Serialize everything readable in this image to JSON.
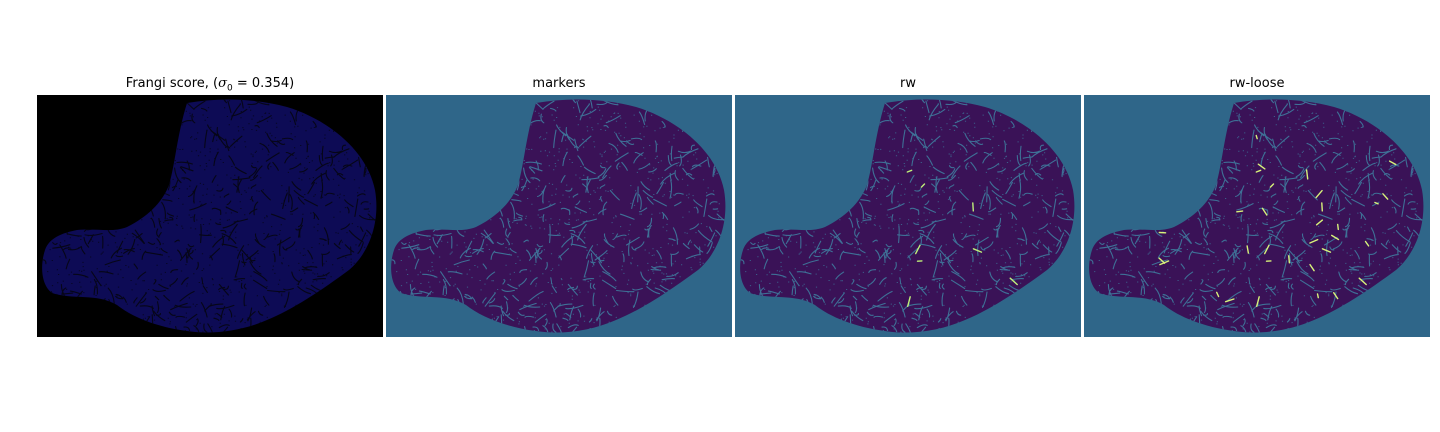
{
  "panels": [
    {
      "title_prefix": "Frangi score, (",
      "title_math": "σ",
      "title_sub": "0",
      "title_suffix": " = 0.354)",
      "background": "#000000",
      "blob_fill": "#0d0b55",
      "vessel_color": "#060617",
      "highlight_color": "#ffe27a",
      "highlight_count": 0
    },
    {
      "title": "markers",
      "background": "#2f6689",
      "blob_fill": "#3a1257",
      "vessel_color": "#3e7096",
      "highlight_color": "#2f6689",
      "highlight_count": 0
    },
    {
      "title": "rw",
      "background": "#2f6689",
      "blob_fill": "#3a1257",
      "vessel_color": "#3e7096",
      "highlight_color": "#bff07a",
      "highlight_count": 9
    },
    {
      "title": "rw-loose",
      "background": "#2f6689",
      "blob_fill": "#3a1257",
      "vessel_color": "#3e7096",
      "highlight_color": "#d7f27a",
      "highlight_count": 40
    }
  ]
}
